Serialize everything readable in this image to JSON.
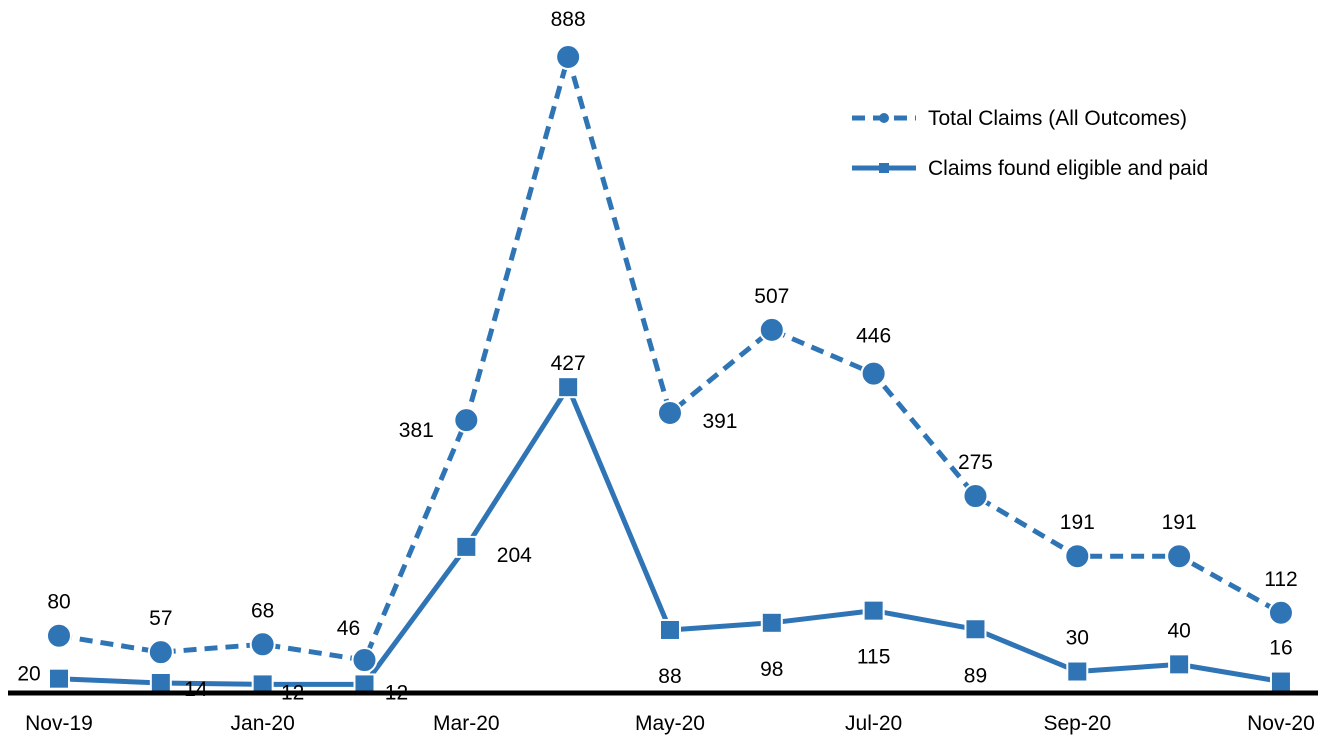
{
  "chart_data": {
    "type": "line",
    "title": "",
    "xlabel": "",
    "ylabel": "",
    "categories": [
      "Nov-19",
      "Dec-19",
      "Jan-20",
      "Feb-20",
      "Mar-20",
      "Apr-20",
      "May-20",
      "Jun-20",
      "Jul-20",
      "Aug-20",
      "Sep-20",
      "Oct-20",
      "Nov-20"
    ],
    "tick_labels": [
      "Nov-19",
      "Jan-20",
      "Mar-20",
      "May-20",
      "Jul-20",
      "Sep-20",
      "Nov-20"
    ],
    "ylim": [
      0,
      930
    ],
    "grid": false,
    "legend_position": "top-right",
    "series": [
      {
        "name": "Total Claims (All Outcomes)",
        "values": [
          80,
          57,
          68,
          46,
          381,
          888,
          391,
          507,
          446,
          275,
          191,
          191,
          112
        ],
        "labels": [
          "80",
          "57",
          "68",
          "46",
          "381",
          "888",
          "391",
          "507",
          "446",
          "275",
          "191",
          "191",
          "112"
        ],
        "color": "#2f75b5",
        "line_style": "dashed",
        "marker": "circle"
      },
      {
        "name": "Claims found eligible and paid",
        "values": [
          20,
          14,
          12,
          12,
          204,
          427,
          88,
          98,
          115,
          89,
          30,
          40,
          16
        ],
        "labels": [
          "20",
          "14",
          "12",
          "12",
          "204",
          "427",
          "88",
          "98",
          "115",
          "89",
          "30",
          "40",
          "16"
        ],
        "color": "#2f75b5",
        "line_style": "solid",
        "marker": "square"
      }
    ]
  }
}
